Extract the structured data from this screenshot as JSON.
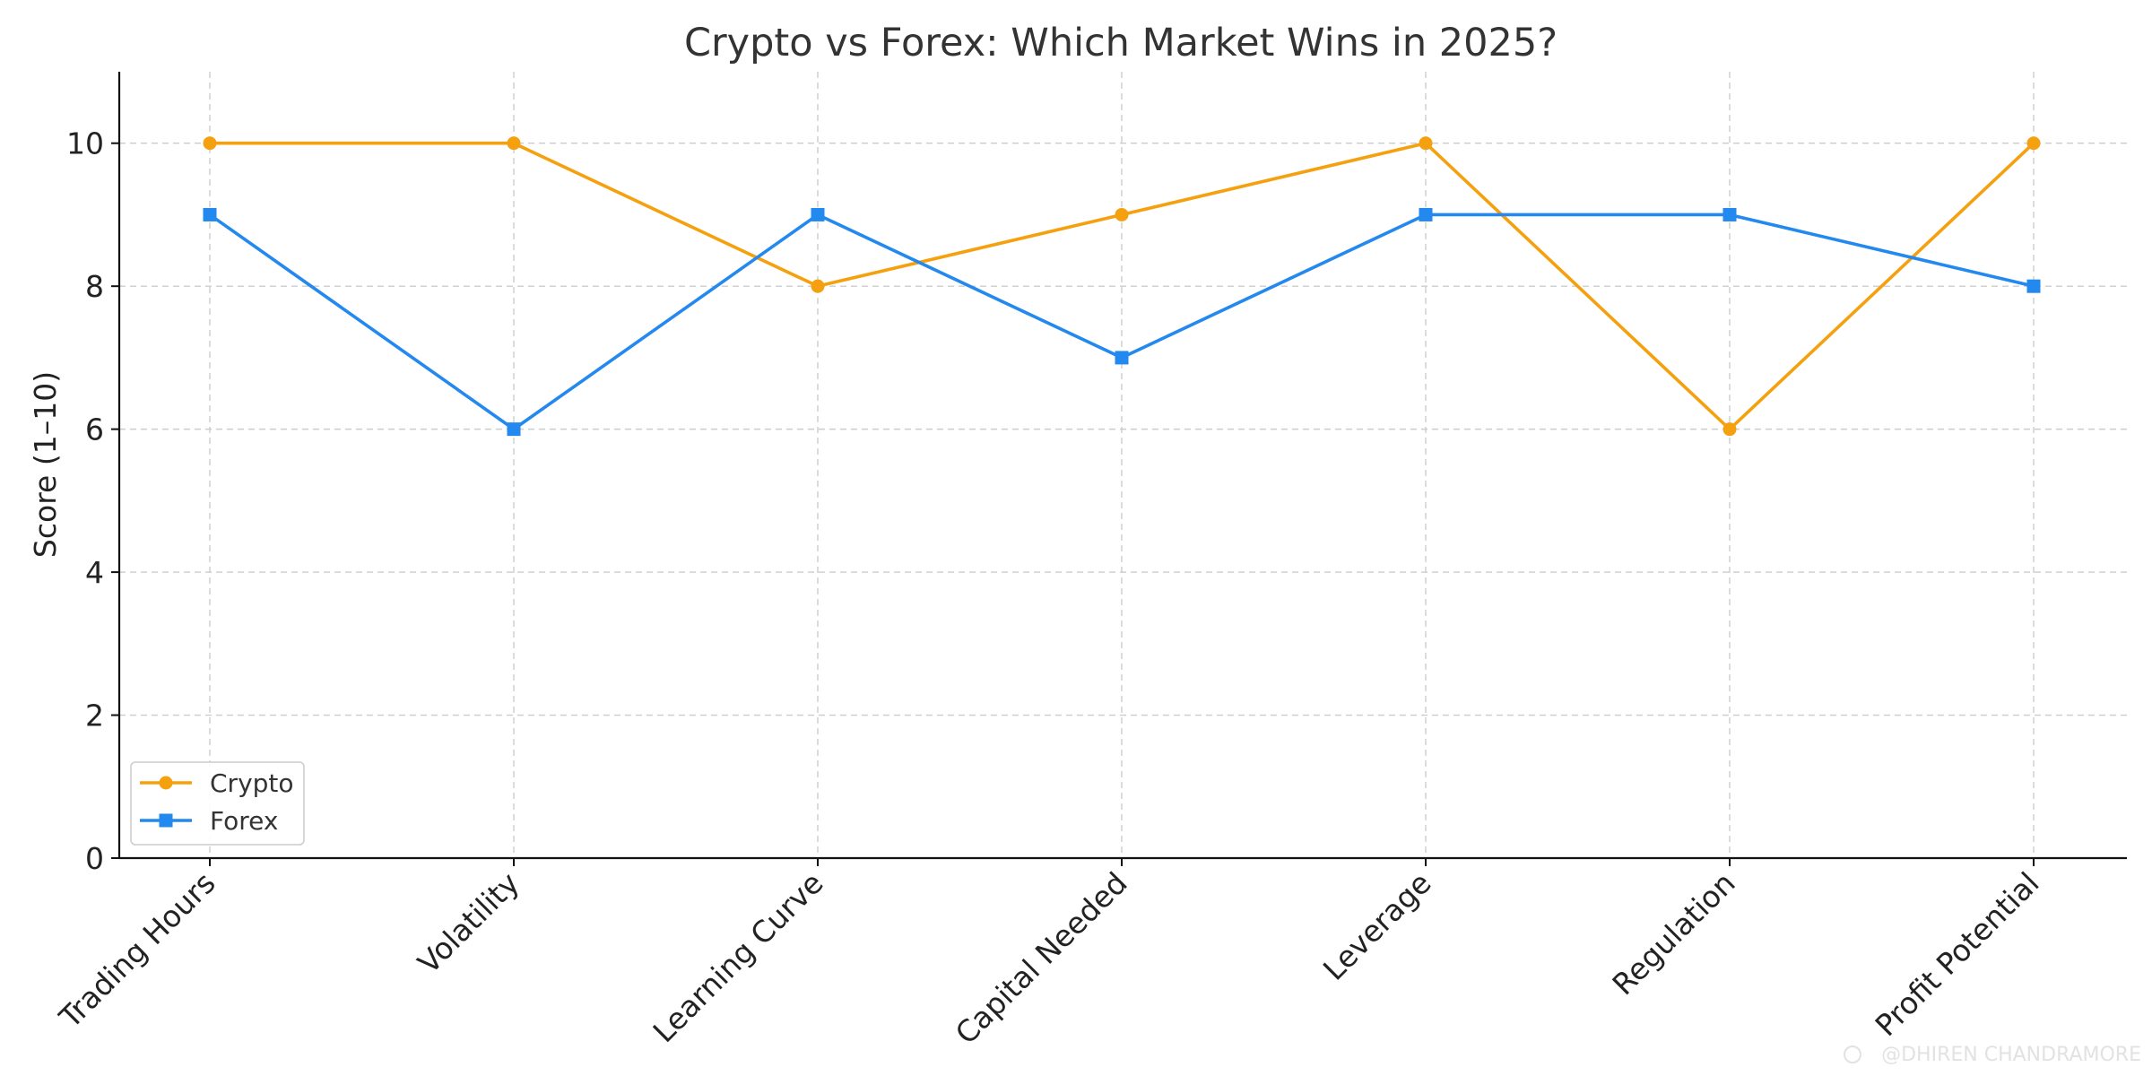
{
  "chart_data": {
    "type": "line",
    "title": "Crypto vs Forex: Which Market Wins in 2025?",
    "xlabel": "",
    "ylabel": "Score (1–10)",
    "ylim": [
      0,
      11
    ],
    "yticks": [
      0,
      2,
      4,
      6,
      8,
      10
    ],
    "grid": true,
    "legend_position": "lower-left",
    "categories": [
      "Trading Hours",
      "Volatility",
      "Learning Curve",
      "Capital Needed",
      "Leverage",
      "Regulation",
      "Profit Potential"
    ],
    "series": [
      {
        "name": "Crypto",
        "color": "#f5a00e",
        "marker": "circle",
        "values": [
          10,
          10,
          8,
          9,
          10,
          6,
          10
        ]
      },
      {
        "name": "Forex",
        "color": "#2389ee",
        "marker": "square",
        "values": [
          9,
          6,
          9,
          7,
          9,
          9,
          8
        ]
      }
    ]
  },
  "watermark": "@DHIREN CHANDRAMORE"
}
